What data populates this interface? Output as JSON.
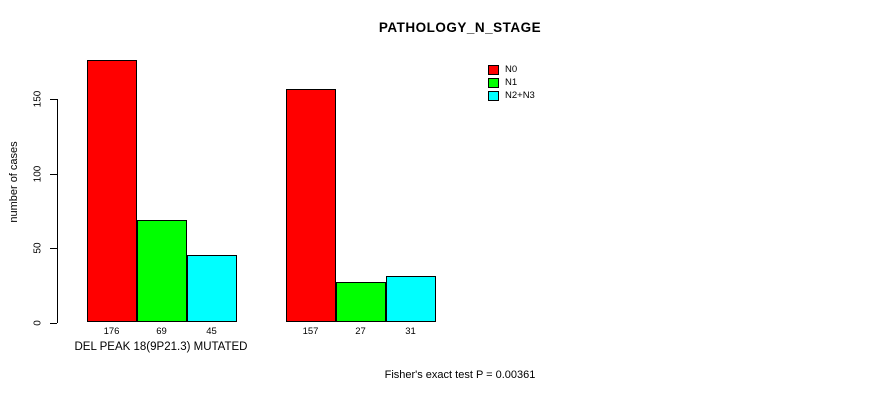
{
  "chart_data": {
    "type": "bar",
    "title": "PATHOLOGY_N_STAGE",
    "ylabel": "number of cases",
    "xlabel": "",
    "categories": [
      "DEL PEAK 18(9P21.3) MUTATED",
      ""
    ],
    "series": [
      {
        "name": "N0",
        "color": "#FF0000",
        "values": [
          176,
          157
        ]
      },
      {
        "name": "N1",
        "color": "#00FF00",
        "values": [
          69,
          27
        ]
      },
      {
        "name": "N2+N3",
        "color": "#00FFFF",
        "values": [
          45,
          31
        ]
      }
    ],
    "bar_value_labels": [
      [
        176,
        69,
        45
      ],
      [
        157,
        27,
        31
      ]
    ],
    "ylim": [
      0,
      176
    ],
    "yticks": [
      0,
      50,
      100,
      150
    ],
    "grid": false,
    "legend_position": "top-right",
    "annotation": "Fisher's exact test P = 0.00361",
    "background": "#FFFFFF",
    "bar_border_color": "#000000"
  }
}
